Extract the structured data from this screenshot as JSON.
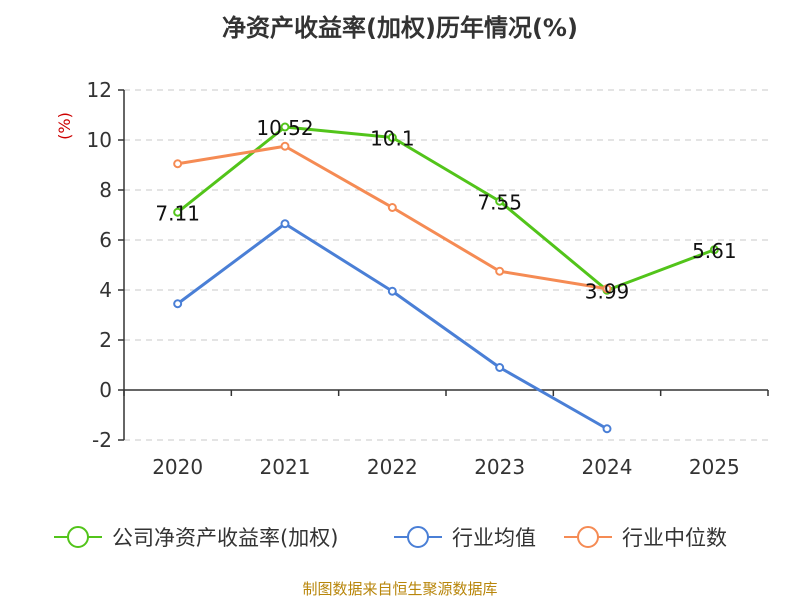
{
  "chart_data": {
    "type": "line",
    "title": "净资产收益率(加权)历年情况(%)",
    "ylabel": "(%)",
    "xlabel": "",
    "categories": [
      "2020",
      "2021",
      "2022",
      "2023",
      "2024",
      "2025"
    ],
    "ylim": [
      -2,
      12
    ],
    "yticks": [
      -2,
      0,
      2,
      4,
      6,
      8,
      10,
      12
    ],
    "grid": true,
    "legend_position": "bottom",
    "series": [
      {
        "name": "公司净资产收益率(加权)",
        "color": "#52c41a",
        "values": [
          7.11,
          10.52,
          10.1,
          7.55,
          3.99,
          5.61
        ],
        "labels": [
          "7.11",
          "10.52",
          "10.1",
          "7.55",
          "3.99",
          "5.61"
        ]
      },
      {
        "name": "行业均值",
        "color": "#4a7fd6",
        "values": [
          3.45,
          6.65,
          3.95,
          0.9,
          -1.55,
          null
        ]
      },
      {
        "name": "行业中位数",
        "color": "#f58b54",
        "values": [
          9.05,
          9.75,
          7.3,
          4.75,
          4.05,
          null
        ]
      }
    ]
  },
  "footer": "制图数据来自恒生聚源数据库"
}
